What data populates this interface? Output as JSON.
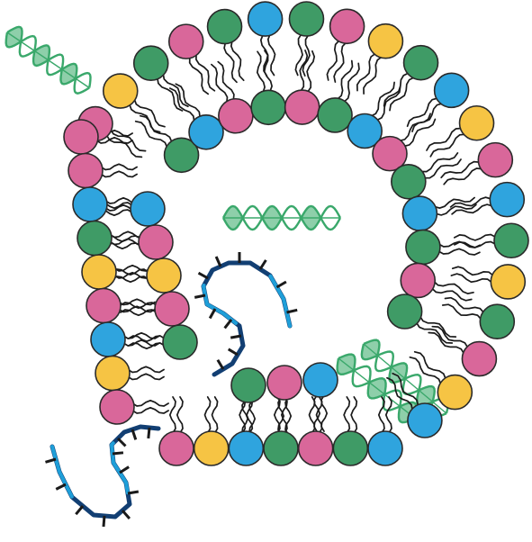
{
  "colors": {
    "pink": "#d9679a",
    "green": "#3f9b66",
    "blue": "#2fa4de",
    "yellow": "#f6c444",
    "outline": "#2a2a2a",
    "tail": "#1a1a1a",
    "helix": "#3aa86b",
    "helix_fill": "#7ac79b",
    "rna_light": "#1e9fd9",
    "rna_dark": "#123f73"
  },
  "diagram": {
    "outer_bilayer": {
      "top_leaflet": [
        "pink",
        "yellow",
        "green",
        "pink",
        "green",
        "blue",
        "green",
        "pink",
        "yellow",
        "green",
        "blue",
        "yellow",
        "pink",
        "blue",
        "green",
        "yellow",
        "green",
        "pink",
        "yellow",
        "blue"
      ],
      "inner_leaflet": [
        "green",
        "blue",
        "pink",
        "green",
        "pink",
        "green",
        "blue",
        "pink",
        "green",
        "blue",
        "green",
        "pink",
        "green"
      ],
      "left_inner": [
        "blue",
        "pink",
        "yellow",
        "pink",
        "green"
      ],
      "left_outer": [
        "pink",
        "pink",
        "blue",
        "green",
        "yellow",
        "pink",
        "blue",
        "yellow",
        "pink"
      ],
      "bottom_outer": [
        "pink",
        "yellow",
        "blue",
        "green",
        "pink",
        "green",
        "blue"
      ],
      "bottom_inner": [
        "green",
        "pink",
        "blue"
      ]
    },
    "cargo": [
      {
        "kind": "dsDNA-helix",
        "position": "top-left"
      },
      {
        "kind": "dsDNA-helix",
        "position": "center"
      },
      {
        "kind": "dsDNA-helix",
        "position": "lower-right"
      },
      {
        "kind": "dsDNA-helix",
        "position": "lower-right"
      },
      {
        "kind": "ssRNA",
        "position": "center"
      },
      {
        "kind": "ssRNA",
        "position": "bottom-left"
      }
    ]
  }
}
